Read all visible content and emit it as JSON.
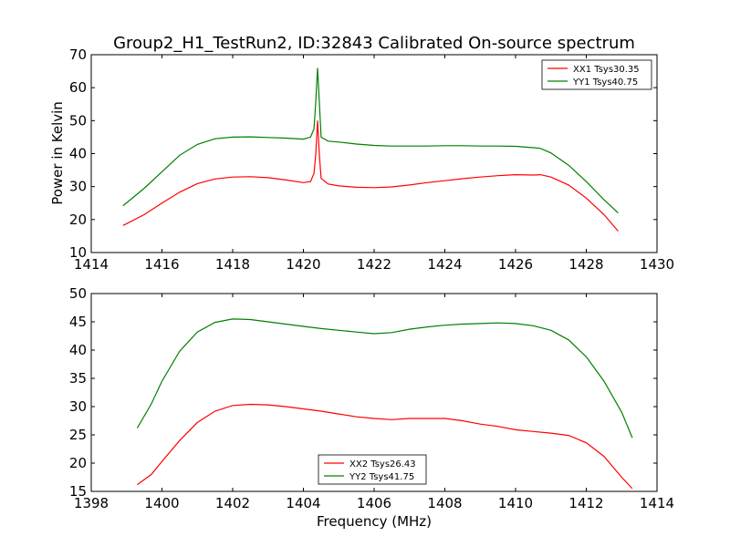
{
  "title": "Group2_H1_TestRun2, ID:32843 Calibrated On-source spectrum",
  "ylabel": "Power in Kelvin",
  "xlabel": "Frequency (MHz)",
  "chart_data": [
    {
      "type": "line",
      "xlim": [
        1414,
        1430
      ],
      "ylim": [
        10,
        70
      ],
      "xticks": [
        1414,
        1416,
        1418,
        1420,
        1422,
        1424,
        1426,
        1428,
        1430
      ],
      "yticks": [
        10,
        20,
        30,
        40,
        50,
        60,
        70
      ],
      "legend_position": "top-right",
      "series": [
        {
          "name": "XX1 Tsys30.35",
          "color": "#ff0000",
          "points": [
            [
              1414.9,
              18.2
            ],
            [
              1415.5,
              21.5
            ],
            [
              1416.0,
              25.0
            ],
            [
              1416.5,
              28.3
            ],
            [
              1417.0,
              30.9
            ],
            [
              1417.5,
              32.3
            ],
            [
              1418.0,
              32.9
            ],
            [
              1418.5,
              33.0
            ],
            [
              1419.0,
              32.7
            ],
            [
              1419.5,
              32.0
            ],
            [
              1420.0,
              31.2
            ],
            [
              1420.2,
              31.5
            ],
            [
              1420.3,
              34.0
            ],
            [
              1420.35,
              40.0
            ],
            [
              1420.4,
              50.0
            ],
            [
              1420.45,
              40.0
            ],
            [
              1420.5,
              32.5
            ],
            [
              1420.7,
              30.8
            ],
            [
              1421.0,
              30.2
            ],
            [
              1421.5,
              29.8
            ],
            [
              1422.0,
              29.7
            ],
            [
              1422.5,
              29.9
            ],
            [
              1423.0,
              30.5
            ],
            [
              1423.5,
              31.2
            ],
            [
              1424.0,
              31.8
            ],
            [
              1424.5,
              32.4
            ],
            [
              1425.0,
              32.9
            ],
            [
              1425.5,
              33.3
            ],
            [
              1426.0,
              33.6
            ],
            [
              1426.5,
              33.5
            ],
            [
              1426.7,
              33.6
            ],
            [
              1427.0,
              32.9
            ],
            [
              1427.5,
              30.5
            ],
            [
              1428.0,
              26.5
            ],
            [
              1428.5,
              21.5
            ],
            [
              1428.9,
              16.5
            ]
          ]
        },
        {
          "name": "YY1 Tsys40.75",
          "color": "#008000",
          "points": [
            [
              1414.9,
              24.2
            ],
            [
              1415.5,
              29.5
            ],
            [
              1416.0,
              34.5
            ],
            [
              1416.5,
              39.5
            ],
            [
              1417.0,
              42.8
            ],
            [
              1417.5,
              44.5
            ],
            [
              1418.0,
              45.0
            ],
            [
              1418.5,
              45.1
            ],
            [
              1419.0,
              44.9
            ],
            [
              1419.5,
              44.7
            ],
            [
              1420.0,
              44.4
            ],
            [
              1420.2,
              45.0
            ],
            [
              1420.3,
              47.5
            ],
            [
              1420.35,
              56.0
            ],
            [
              1420.4,
              66.0
            ],
            [
              1420.45,
              56.0
            ],
            [
              1420.5,
              45.0
            ],
            [
              1420.7,
              43.8
            ],
            [
              1421.0,
              43.5
            ],
            [
              1421.5,
              42.9
            ],
            [
              1422.0,
              42.5
            ],
            [
              1422.5,
              42.3
            ],
            [
              1423.0,
              42.3
            ],
            [
              1423.5,
              42.3
            ],
            [
              1424.0,
              42.4
            ],
            [
              1424.5,
              42.4
            ],
            [
              1425.0,
              42.3
            ],
            [
              1425.5,
              42.3
            ],
            [
              1426.0,
              42.2
            ],
            [
              1426.5,
              41.8
            ],
            [
              1426.7,
              41.6
            ],
            [
              1427.0,
              40.2
            ],
            [
              1427.5,
              36.5
            ],
            [
              1428.0,
              31.5
            ],
            [
              1428.5,
              26.0
            ],
            [
              1428.9,
              22.0
            ]
          ]
        }
      ]
    },
    {
      "type": "line",
      "xlim": [
        1398,
        1414
      ],
      "ylim": [
        15,
        50
      ],
      "xticks": [
        1398,
        1400,
        1402,
        1404,
        1406,
        1408,
        1410,
        1412,
        1414
      ],
      "yticks": [
        15,
        20,
        25,
        30,
        35,
        40,
        45,
        50
      ],
      "legend_position": "bottom-center",
      "series": [
        {
          "name": "XX2 Tsys26.43",
          "color": "#ff0000",
          "points": [
            [
              1399.3,
              16.2
            ],
            [
              1399.7,
              18.0
            ],
            [
              1400.0,
              20.3
            ],
            [
              1400.5,
              24.0
            ],
            [
              1401.0,
              27.2
            ],
            [
              1401.5,
              29.2
            ],
            [
              1402.0,
              30.2
            ],
            [
              1402.5,
              30.4
            ],
            [
              1403.0,
              30.3
            ],
            [
              1403.5,
              30.0
            ],
            [
              1404.0,
              29.6
            ],
            [
              1404.5,
              29.2
            ],
            [
              1405.0,
              28.7
            ],
            [
              1405.5,
              28.2
            ],
            [
              1406.0,
              27.9
            ],
            [
              1406.5,
              27.7
            ],
            [
              1407.0,
              27.9
            ],
            [
              1407.5,
              27.9
            ],
            [
              1408.0,
              27.9
            ],
            [
              1408.5,
              27.5
            ],
            [
              1409.0,
              26.9
            ],
            [
              1409.5,
              26.5
            ],
            [
              1410.0,
              25.9
            ],
            [
              1410.5,
              25.6
            ],
            [
              1411.0,
              25.3
            ],
            [
              1411.5,
              24.9
            ],
            [
              1412.0,
              23.6
            ],
            [
              1412.5,
              21.2
            ],
            [
              1413.0,
              17.5
            ],
            [
              1413.3,
              15.5
            ]
          ]
        },
        {
          "name": "YY2 Tsys41.75",
          "color": "#008000",
          "points": [
            [
              1399.3,
              26.2
            ],
            [
              1399.7,
              30.5
            ],
            [
              1400.0,
              34.5
            ],
            [
              1400.5,
              39.8
            ],
            [
              1401.0,
              43.2
            ],
            [
              1401.5,
              44.9
            ],
            [
              1402.0,
              45.5
            ],
            [
              1402.5,
              45.4
            ],
            [
              1403.0,
              45.0
            ],
            [
              1403.5,
              44.6
            ],
            [
              1404.0,
              44.2
            ],
            [
              1404.5,
              43.8
            ],
            [
              1405.0,
              43.5
            ],
            [
              1405.5,
              43.2
            ],
            [
              1406.0,
              42.9
            ],
            [
              1406.5,
              43.1
            ],
            [
              1407.0,
              43.7
            ],
            [
              1407.5,
              44.1
            ],
            [
              1408.0,
              44.4
            ],
            [
              1408.5,
              44.6
            ],
            [
              1409.0,
              44.7
            ],
            [
              1409.5,
              44.8
            ],
            [
              1410.0,
              44.7
            ],
            [
              1410.5,
              44.3
            ],
            [
              1411.0,
              43.5
            ],
            [
              1411.5,
              41.8
            ],
            [
              1412.0,
              38.8
            ],
            [
              1412.5,
              34.5
            ],
            [
              1413.0,
              29.0
            ],
            [
              1413.3,
              24.5
            ]
          ]
        }
      ]
    }
  ]
}
